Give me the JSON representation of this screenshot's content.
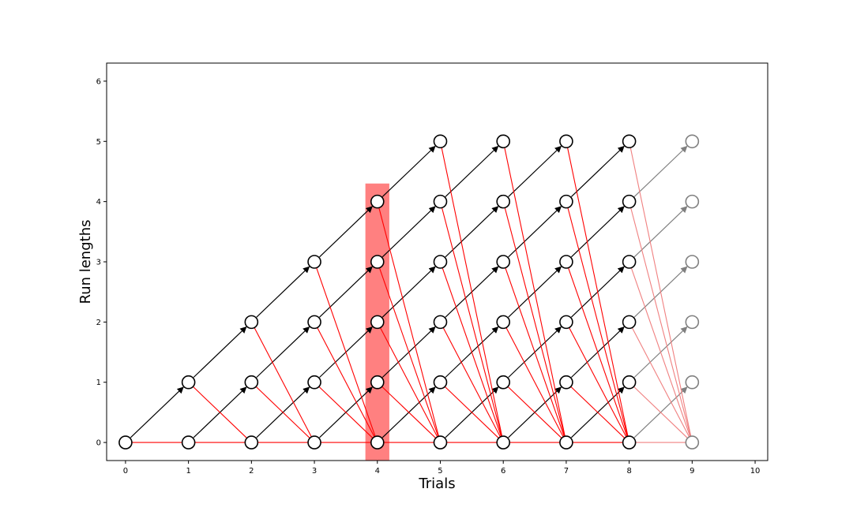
{
  "chart_data": {
    "type": "scatter",
    "xlabel": "Trials",
    "ylabel": "Run lengths",
    "xlim": [
      -0.3,
      10.2
    ],
    "ylim": [
      -0.3,
      6.3
    ],
    "xticks": [
      0,
      1,
      2,
      3,
      4,
      5,
      6,
      7,
      8,
      9,
      10
    ],
    "yticks": [
      0,
      1,
      2,
      3,
      4,
      5,
      6
    ],
    "grid": false,
    "highlight": {
      "x": 4,
      "y_from": -0.3,
      "y_to": 4.3,
      "color": "#ff8080"
    },
    "node_color": "#000000",
    "future_node_color": "#808080",
    "growth_edge_color": "#000000",
    "changepoint_edge_color": "#ff0000",
    "future_growth_edge_color": "#808080",
    "future_changepoint_edge_color": "#f08080",
    "trials": [
      {
        "x": 0,
        "run_lengths": [
          0
        ],
        "future": false
      },
      {
        "x": 1,
        "run_lengths": [
          0,
          1
        ],
        "future": false
      },
      {
        "x": 2,
        "run_lengths": [
          0,
          1,
          2
        ],
        "future": false
      },
      {
        "x": 3,
        "run_lengths": [
          0,
          1,
          2,
          3
        ],
        "future": false
      },
      {
        "x": 4,
        "run_lengths": [
          0,
          1,
          2,
          3,
          4
        ],
        "future": false
      },
      {
        "x": 5,
        "run_lengths": [
          0,
          1,
          2,
          3,
          4,
          5
        ],
        "future": false
      },
      {
        "x": 6,
        "run_lengths": [
          0,
          1,
          2,
          3,
          4,
          5
        ],
        "future": false
      },
      {
        "x": 7,
        "run_lengths": [
          0,
          1,
          2,
          3,
          4,
          5
        ],
        "future": false
      },
      {
        "x": 8,
        "run_lengths": [
          0,
          1,
          2,
          3,
          4,
          5
        ],
        "future": false
      },
      {
        "x": 9,
        "run_lengths": [
          0,
          1,
          2,
          3,
          4,
          5
        ],
        "future": true
      }
    ]
  }
}
